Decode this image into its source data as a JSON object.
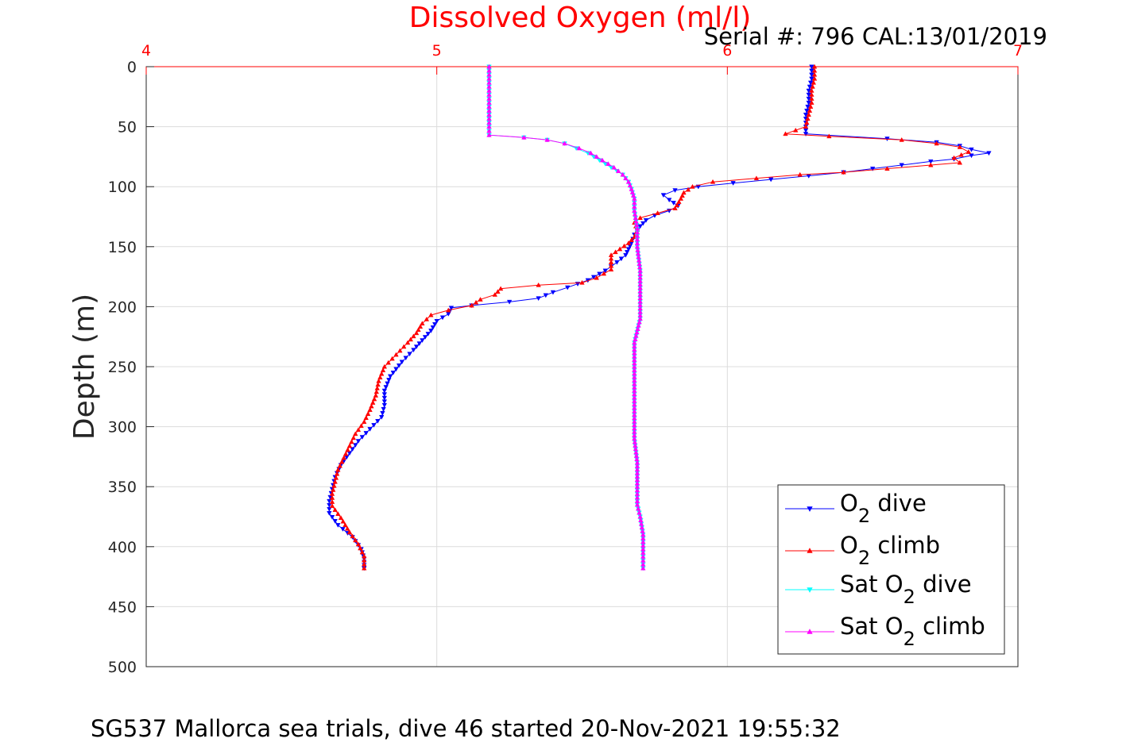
{
  "chart_data": {
    "type": "line",
    "title": "Dissolved Oxygen (ml/l)",
    "subtitle": "Serial #: 796  CAL:13/01/2019",
    "footer": "SG537 Mallorca sea trials, dive 46 started 20-Nov-2021 19:55:32",
    "ylabel": "Depth (m)",
    "xlabel": "",
    "xlim": [
      4,
      7
    ],
    "ylim": [
      0,
      500
    ],
    "y_reversed": true,
    "x_axis_position": "top",
    "x_ticks": [
      "4",
      "5",
      "6",
      "7"
    ],
    "y_ticks": [
      "0",
      "50",
      "100",
      "150",
      "200",
      "250",
      "300",
      "350",
      "400",
      "450",
      "500"
    ],
    "grid": true,
    "legend_position": "bottom-right",
    "colors": {
      "title": "#ff0000",
      "x_ticks": "#ff0000",
      "grid": "#dcdcdc",
      "axis": "#262626"
    },
    "series": [
      {
        "name": "O2 dive",
        "legend_main": "O",
        "legend_sub": "2",
        "legend_rest": " dive",
        "color": "#0000ff",
        "marker": "down-triangle",
        "points": [
          [
            6.29,
            0
          ],
          [
            6.29,
            10
          ],
          [
            6.28,
            20
          ],
          [
            6.28,
            30
          ],
          [
            6.27,
            40
          ],
          [
            6.27,
            50
          ],
          [
            6.27,
            56
          ],
          [
            6.55,
            60
          ],
          [
            6.72,
            63
          ],
          [
            6.8,
            66
          ],
          [
            6.84,
            69
          ],
          [
            6.9,
            72
          ],
          [
            6.84,
            74
          ],
          [
            6.78,
            77
          ],
          [
            6.7,
            79
          ],
          [
            6.6,
            82
          ],
          [
            6.5,
            85
          ],
          [
            6.4,
            88
          ],
          [
            6.28,
            91
          ],
          [
            6.15,
            94
          ],
          [
            6.02,
            97
          ],
          [
            5.9,
            100
          ],
          [
            5.82,
            103
          ],
          [
            5.78,
            107
          ],
          [
            5.8,
            111
          ],
          [
            5.83,
            116
          ],
          [
            5.8,
            120
          ],
          [
            5.75,
            124
          ],
          [
            5.72,
            128
          ],
          [
            5.7,
            133
          ],
          [
            5.68,
            140
          ],
          [
            5.67,
            147
          ],
          [
            5.66,
            152
          ],
          [
            5.65,
            157
          ],
          [
            5.62,
            163
          ],
          [
            5.58,
            170
          ],
          [
            5.52,
            178
          ],
          [
            5.45,
            184
          ],
          [
            5.4,
            188
          ],
          [
            5.35,
            193
          ],
          [
            5.25,
            196
          ],
          [
            5.12,
            199
          ],
          [
            5.05,
            201
          ],
          [
            5.04,
            206
          ],
          [
            5.0,
            212
          ],
          [
            4.98,
            220
          ],
          [
            4.95,
            228
          ],
          [
            4.92,
            236
          ],
          [
            4.88,
            246
          ],
          [
            4.84,
            258
          ],
          [
            4.82,
            270
          ],
          [
            4.82,
            282
          ],
          [
            4.81,
            292
          ],
          [
            4.77,
            302
          ],
          [
            4.73,
            312
          ],
          [
            4.7,
            322
          ],
          [
            4.67,
            332
          ],
          [
            4.65,
            342
          ],
          [
            4.64,
            352
          ],
          [
            4.63,
            362
          ],
          [
            4.63,
            372
          ],
          [
            4.66,
            382
          ],
          [
            4.71,
            392
          ],
          [
            4.74,
            402
          ],
          [
            4.75,
            410
          ],
          [
            4.75,
            418
          ]
        ]
      },
      {
        "name": "O2 climb",
        "legend_main": "O",
        "legend_sub": "2",
        "legend_rest": " climb",
        "color": "#ff0000",
        "marker": "up-triangle",
        "points": [
          [
            6.3,
            0
          ],
          [
            6.3,
            10
          ],
          [
            6.29,
            20
          ],
          [
            6.29,
            30
          ],
          [
            6.28,
            40
          ],
          [
            6.27,
            50
          ],
          [
            6.2,
            56
          ],
          [
            6.35,
            58
          ],
          [
            6.6,
            61
          ],
          [
            6.72,
            64
          ],
          [
            6.8,
            67
          ],
          [
            6.83,
            71
          ],
          [
            6.78,
            76
          ],
          [
            6.8,
            80
          ],
          [
            6.7,
            82
          ],
          [
            6.55,
            85
          ],
          [
            6.4,
            88
          ],
          [
            6.25,
            90
          ],
          [
            6.1,
            93
          ],
          [
            5.95,
            96
          ],
          [
            5.88,
            100
          ],
          [
            5.85,
            105
          ],
          [
            5.84,
            110
          ],
          [
            5.82,
            118
          ],
          [
            5.76,
            122
          ],
          [
            5.7,
            126
          ],
          [
            5.68,
            130
          ],
          [
            5.69,
            136
          ],
          [
            5.68,
            142
          ],
          [
            5.66,
            147
          ],
          [
            5.63,
            152
          ],
          [
            5.6,
            157
          ],
          [
            5.6,
            163
          ],
          [
            5.6,
            169
          ],
          [
            5.55,
            176
          ],
          [
            5.5,
            180
          ],
          [
            5.35,
            182
          ],
          [
            5.22,
            185
          ],
          [
            5.2,
            190
          ],
          [
            5.15,
            194
          ],
          [
            5.12,
            199
          ],
          [
            5.04,
            203
          ],
          [
            4.98,
            207
          ],
          [
            4.95,
            214
          ],
          [
            4.93,
            222
          ],
          [
            4.9,
            230
          ],
          [
            4.86,
            240
          ],
          [
            4.82,
            250
          ],
          [
            4.8,
            262
          ],
          [
            4.79,
            274
          ],
          [
            4.77,
            286
          ],
          [
            4.75,
            296
          ],
          [
            4.72,
            306
          ],
          [
            4.7,
            316
          ],
          [
            4.68,
            326
          ],
          [
            4.66,
            336
          ],
          [
            4.65,
            346
          ],
          [
            4.64,
            356
          ],
          [
            4.64,
            366
          ],
          [
            4.67,
            376
          ],
          [
            4.7,
            388
          ],
          [
            4.73,
            398
          ],
          [
            4.75,
            408
          ],
          [
            4.75,
            418
          ]
        ]
      },
      {
        "name": "Sat O2 dive",
        "legend_main": "Sat O",
        "legend_sub": "2",
        "legend_rest": " dive",
        "color": "#00ffff",
        "marker": "down-triangle",
        "points": [
          [
            5.18,
            0
          ],
          [
            5.18,
            10
          ],
          [
            5.18,
            20
          ],
          [
            5.18,
            30
          ],
          [
            5.18,
            40
          ],
          [
            5.18,
            50
          ],
          [
            5.18,
            57
          ],
          [
            5.3,
            59
          ],
          [
            5.38,
            61
          ],
          [
            5.44,
            64
          ],
          [
            5.48,
            68
          ],
          [
            5.52,
            72
          ],
          [
            5.56,
            78
          ],
          [
            5.6,
            84
          ],
          [
            5.64,
            90
          ],
          [
            5.66,
            96
          ],
          [
            5.67,
            102
          ],
          [
            5.68,
            110
          ],
          [
            5.68,
            120
          ],
          [
            5.69,
            135
          ],
          [
            5.69,
            150
          ],
          [
            5.7,
            170
          ],
          [
            5.7,
            190
          ],
          [
            5.7,
            210
          ],
          [
            5.68,
            230
          ],
          [
            5.68,
            250
          ],
          [
            5.68,
            270
          ],
          [
            5.68,
            290
          ],
          [
            5.68,
            310
          ],
          [
            5.69,
            330
          ],
          [
            5.69,
            350
          ],
          [
            5.69,
            365
          ],
          [
            5.7,
            375
          ],
          [
            5.71,
            390
          ],
          [
            5.71,
            405
          ],
          [
            5.71,
            418
          ]
        ]
      },
      {
        "name": "Sat O2 climb",
        "legend_main": "Sat O",
        "legend_sub": "2",
        "legend_rest": " climb",
        "color": "#ff00ff",
        "marker": "up-triangle",
        "points": [
          [
            5.18,
            0
          ],
          [
            5.18,
            10
          ],
          [
            5.18,
            20
          ],
          [
            5.18,
            30
          ],
          [
            5.18,
            40
          ],
          [
            5.18,
            50
          ],
          [
            5.18,
            57
          ],
          [
            5.3,
            59
          ],
          [
            5.38,
            61
          ],
          [
            5.44,
            64
          ],
          [
            5.49,
            68
          ],
          [
            5.53,
            72
          ],
          [
            5.57,
            78
          ],
          [
            5.61,
            84
          ],
          [
            5.64,
            90
          ],
          [
            5.66,
            96
          ],
          [
            5.67,
            102
          ],
          [
            5.68,
            110
          ],
          [
            5.68,
            120
          ],
          [
            5.69,
            135
          ],
          [
            5.69,
            150
          ],
          [
            5.7,
            170
          ],
          [
            5.7,
            190
          ],
          [
            5.7,
            210
          ],
          [
            5.68,
            230
          ],
          [
            5.68,
            250
          ],
          [
            5.68,
            270
          ],
          [
            5.68,
            290
          ],
          [
            5.68,
            310
          ],
          [
            5.69,
            330
          ],
          [
            5.69,
            350
          ],
          [
            5.69,
            365
          ],
          [
            5.7,
            375
          ],
          [
            5.71,
            390
          ],
          [
            5.71,
            405
          ],
          [
            5.71,
            418
          ]
        ]
      }
    ]
  }
}
